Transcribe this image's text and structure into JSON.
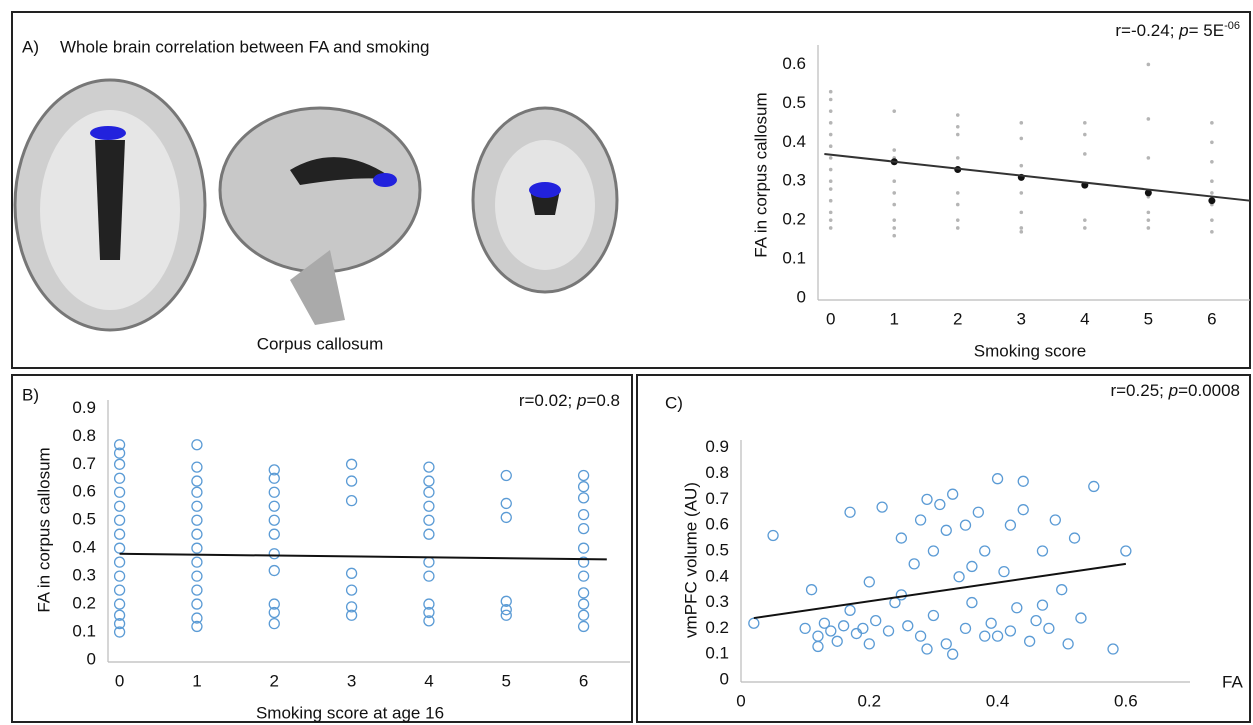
{
  "chart_data": [
    {
      "type": "scatter",
      "panel_label": "A)",
      "title": "Whole brain correlation between FA and smoking",
      "image_caption": "Corpus callosum",
      "annotation": [
        "r=-0.24; ",
        "p",
        "= 5E",
        "-06"
      ],
      "x_label": "Smoking score",
      "y_label": "FA in corpus callosum",
      "xlim": [
        -0.2,
        6.6
      ],
      "ylim": [
        0,
        0.65
      ],
      "xticks": [
        0,
        1,
        2,
        3,
        4,
        5,
        6
      ],
      "yticks": [
        0,
        0.1,
        0.2,
        0.3,
        0.4,
        0.5,
        0.6
      ],
      "series": [
        {
          "mode": "markers",
          "marker": "dot",
          "color": "#b5b5b5",
          "x": [
            0,
            0,
            0,
            0,
            0,
            0,
            0,
            0,
            0,
            0,
            0,
            0,
            0,
            0,
            1,
            1,
            1,
            1,
            1,
            1,
            1,
            1,
            1,
            2,
            2,
            2,
            2,
            2,
            2,
            2,
            2,
            3,
            3,
            3,
            3,
            3,
            3,
            3,
            4,
            4,
            4,
            4,
            4,
            5,
            5,
            5,
            5,
            5,
            5,
            5,
            6,
            6,
            6,
            6,
            6,
            6,
            6,
            6
          ],
          "values": [
            0.18,
            0.2,
            0.22,
            0.25,
            0.28,
            0.3,
            0.33,
            0.36,
            0.39,
            0.42,
            0.45,
            0.48,
            0.51,
            0.53,
            0.48,
            0.38,
            0.36,
            0.3,
            0.27,
            0.24,
            0.2,
            0.18,
            0.16,
            0.47,
            0.44,
            0.42,
            0.36,
            0.27,
            0.24,
            0.2,
            0.18,
            0.45,
            0.41,
            0.34,
            0.27,
            0.22,
            0.18,
            0.17,
            0.45,
            0.42,
            0.37,
            0.2,
            0.18,
            0.6,
            0.46,
            0.36,
            0.26,
            0.22,
            0.2,
            0.18,
            0.45,
            0.4,
            0.35,
            0.3,
            0.27,
            0.24,
            0.2,
            0.17
          ]
        },
        {
          "mode": "markers",
          "marker": "mean",
          "color": "#111111",
          "x": [
            1,
            2,
            3,
            4,
            5,
            6
          ],
          "values": [
            0.35,
            0.33,
            0.31,
            0.29,
            0.27,
            0.25
          ]
        },
        {
          "mode": "line",
          "color": "#333333",
          "x": [
            -0.1,
            6.6
          ],
          "values": [
            0.37,
            0.25
          ]
        }
      ]
    },
    {
      "type": "scatter",
      "panel_label": "B)",
      "annotation": [
        "r=0.02; ",
        "p",
        "=0.8"
      ],
      "x_label": "Smoking  score at age 16",
      "y_label": "FA in corpus callosum",
      "xlim": [
        -0.15,
        6.6
      ],
      "ylim": [
        0,
        0.93
      ],
      "xticks": [
        0,
        1,
        2,
        3,
        4,
        5,
        6
      ],
      "yticks": [
        0,
        0.1,
        0.2,
        0.3,
        0.4,
        0.5,
        0.6,
        0.7,
        0.8,
        0.9
      ],
      "series": [
        {
          "mode": "markers",
          "marker": "circle",
          "color": "#5b9bd5",
          "x": [
            0,
            0,
            0,
            0,
            0,
            0,
            0,
            0,
            0,
            0,
            0,
            0,
            0,
            0,
            0,
            0,
            1,
            1,
            1,
            1,
            1,
            1,
            1,
            1,
            1,
            1,
            1,
            1,
            1,
            1,
            2,
            2,
            2,
            2,
            2,
            2,
            2,
            2,
            2,
            2,
            2,
            3,
            3,
            3,
            3,
            3,
            3,
            3,
            4,
            4,
            4,
            4,
            4,
            4,
            4,
            4,
            4,
            4,
            4,
            5,
            5,
            5,
            5,
            5,
            5,
            6,
            6,
            6,
            6,
            6,
            6,
            6,
            6,
            6,
            6,
            6,
            6
          ],
          "values": [
            0.1,
            0.13,
            0.16,
            0.2,
            0.25,
            0.3,
            0.35,
            0.4,
            0.45,
            0.5,
            0.55,
            0.6,
            0.65,
            0.7,
            0.74,
            0.77,
            0.77,
            0.69,
            0.64,
            0.6,
            0.55,
            0.5,
            0.45,
            0.4,
            0.35,
            0.3,
            0.25,
            0.2,
            0.15,
            0.12,
            0.68,
            0.65,
            0.6,
            0.55,
            0.5,
            0.45,
            0.38,
            0.32,
            0.2,
            0.17,
            0.13,
            0.7,
            0.64,
            0.57,
            0.31,
            0.25,
            0.19,
            0.16,
            0.69,
            0.64,
            0.6,
            0.55,
            0.5,
            0.45,
            0.35,
            0.3,
            0.2,
            0.17,
            0.14,
            0.66,
            0.56,
            0.51,
            0.21,
            0.18,
            0.16,
            0.66,
            0.62,
            0.58,
            0.52,
            0.47,
            0.4,
            0.35,
            0.3,
            0.24,
            0.2,
            0.16,
            0.12
          ]
        },
        {
          "mode": "line",
          "color": "#111111",
          "x": [
            0,
            6.3
          ],
          "values": [
            0.38,
            0.36
          ]
        }
      ]
    },
    {
      "type": "scatter",
      "panel_label": "C)",
      "annotation": [
        "r=0.25; ",
        "p",
        "=0.0008"
      ],
      "x_label": "FA",
      "y_label": "vmPFC volume (AU)",
      "xlim": [
        0,
        0.7
      ],
      "ylim": [
        0,
        0.93
      ],
      "xticks": [
        0,
        0.2,
        0.4,
        0.6
      ],
      "yticks": [
        0,
        0.1,
        0.2,
        0.3,
        0.4,
        0.5,
        0.6,
        0.7,
        0.8,
        0.9
      ],
      "series": [
        {
          "mode": "markers",
          "marker": "circle",
          "color": "#5b9bd5",
          "x": [
            0.02,
            0.05,
            0.1,
            0.11,
            0.12,
            0.13,
            0.14,
            0.15,
            0.16,
            0.17,
            0.18,
            0.19,
            0.2,
            0.2,
            0.21,
            0.22,
            0.23,
            0.24,
            0.25,
            0.26,
            0.27,
            0.28,
            0.28,
            0.29,
            0.3,
            0.3,
            0.31,
            0.32,
            0.32,
            0.33,
            0.34,
            0.35,
            0.35,
            0.36,
            0.37,
            0.38,
            0.38,
            0.39,
            0.4,
            0.41,
            0.42,
            0.42,
            0.43,
            0.44,
            0.45,
            0.46,
            0.47,
            0.48,
            0.49,
            0.5,
            0.51,
            0.52,
            0.53,
            0.55,
            0.58,
            0.6,
            0.12,
            0.17,
            0.25,
            0.33,
            0.36,
            0.44,
            0.47,
            0.29,
            0.4
          ],
          "values": [
            0.22,
            0.56,
            0.2,
            0.35,
            0.17,
            0.22,
            0.19,
            0.15,
            0.21,
            0.65,
            0.18,
            0.2,
            0.38,
            0.14,
            0.23,
            0.67,
            0.19,
            0.3,
            0.55,
            0.21,
            0.45,
            0.17,
            0.62,
            0.7,
            0.25,
            0.5,
            0.68,
            0.14,
            0.58,
            0.72,
            0.4,
            0.2,
            0.6,
            0.3,
            0.65,
            0.17,
            0.5,
            0.22,
            0.78,
            0.42,
            0.19,
            0.6,
            0.28,
            0.77,
            0.15,
            0.23,
            0.5,
            0.2,
            0.62,
            0.35,
            0.14,
            0.55,
            0.24,
            0.75,
            0.12,
            0.5,
            0.13,
            0.27,
            0.33,
            0.1,
            0.44,
            0.66,
            0.29,
            0.12,
            0.17
          ]
        },
        {
          "mode": "line",
          "color": "#111111",
          "x": [
            0.02,
            0.6
          ],
          "values": [
            0.24,
            0.45
          ]
        }
      ]
    }
  ]
}
